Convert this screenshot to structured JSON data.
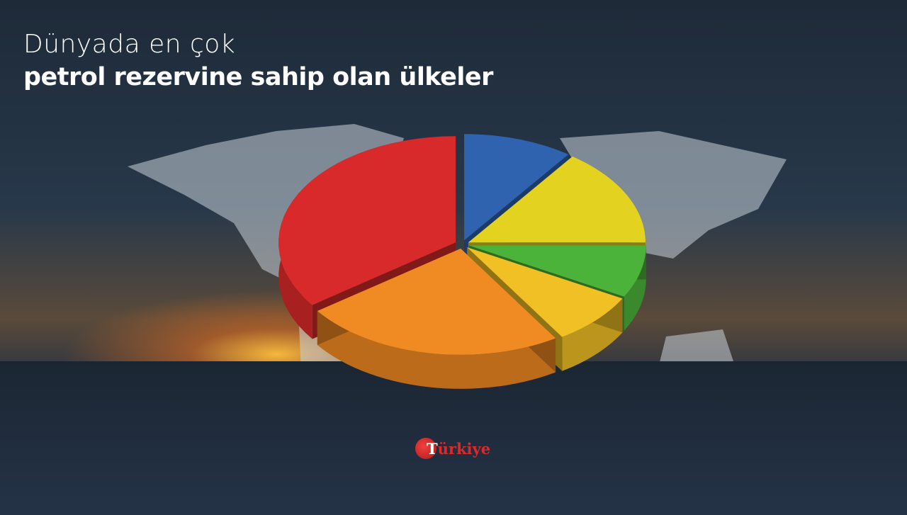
{
  "header": {
    "line1": "Dünyada en çok",
    "line2": "petrol rezervine sahip olan ülkeler"
  },
  "logo": {
    "text": "Türkiye"
  },
  "chart_data": {
    "type": "pie",
    "style": "3d-exploded",
    "labels_shown": false,
    "slices": [
      {
        "color": "#2f63b0",
        "share": 10
      },
      {
        "color": "#e4d221",
        "share": 15
      },
      {
        "color": "#4bb23a",
        "share": 8
      },
      {
        "color": "#f0c024",
        "share": 8
      },
      {
        "color": "#f08a22",
        "share": 24
      },
      {
        "color": "#d82a2a",
        "share": 35
      }
    ]
  }
}
